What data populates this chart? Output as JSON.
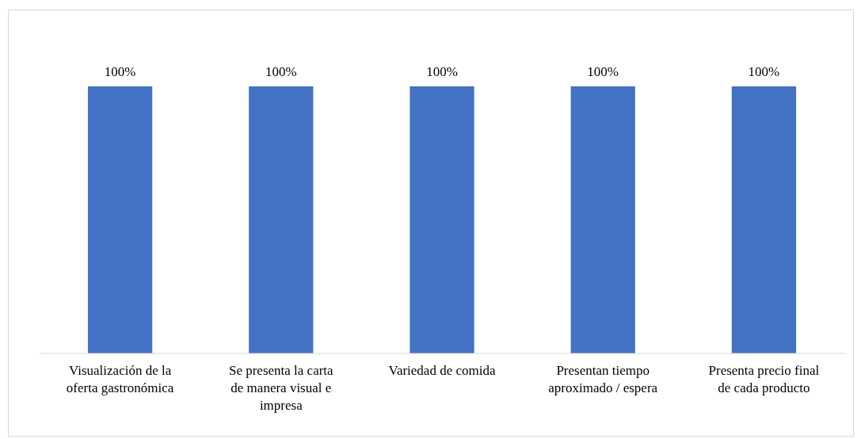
{
  "chart_data": {
    "type": "bar",
    "categories": [
      "Visualización de la oferta gastronómica",
      "Se presenta la carta de manera visual e impresa",
      "Variedad de comida",
      "Presentan tiempo aproximado / espera",
      "Presenta precio final de cada producto"
    ],
    "values": [
      100,
      100,
      100,
      100,
      100
    ],
    "value_labels": [
      "100%",
      "100%",
      "100%",
      "100%",
      "100%"
    ],
    "color": "#4472c4"
  }
}
